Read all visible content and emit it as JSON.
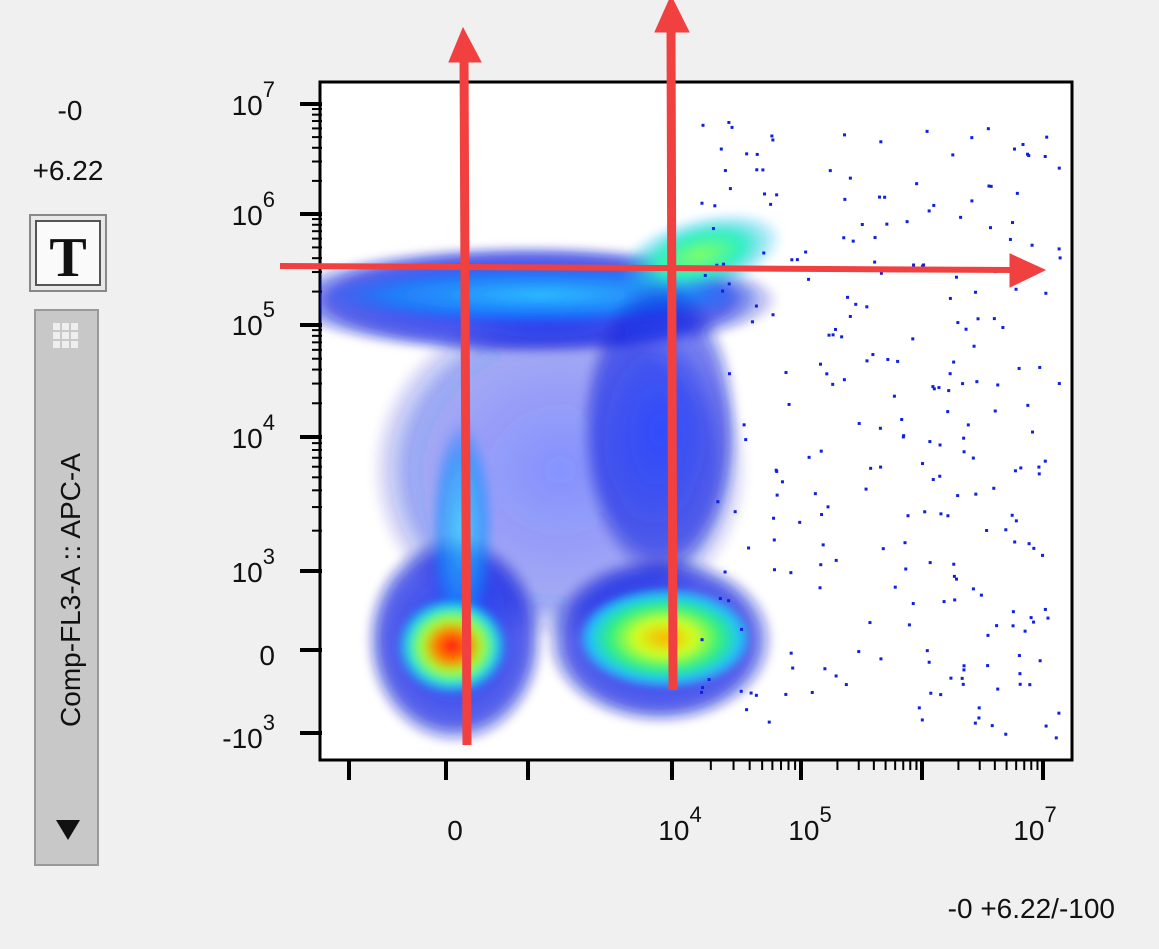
{
  "left_panel": {
    "min": "-0",
    "max": "+6.22",
    "text_button": "T",
    "y_parameter": "Comp-FL3-A :: APC-A"
  },
  "plot": {
    "y_ticks": [
      {
        "base": "10",
        "exp": "7"
      },
      {
        "base": "10",
        "exp": "6"
      },
      {
        "base": "10",
        "exp": "5"
      },
      {
        "base": "10",
        "exp": "4"
      },
      {
        "base": "10",
        "exp": "3"
      },
      {
        "base": "0"
      },
      {
        "base": "-10",
        "exp": "3"
      }
    ],
    "x_ticks": [
      {
        "base": "0"
      },
      {
        "base": "10",
        "exp": "4"
      },
      {
        "base": "10",
        "exp": "5"
      },
      {
        "base": "10",
        "exp": "7"
      }
    ]
  },
  "footer": {
    "x_range": "-0 +6.22/-100"
  }
}
